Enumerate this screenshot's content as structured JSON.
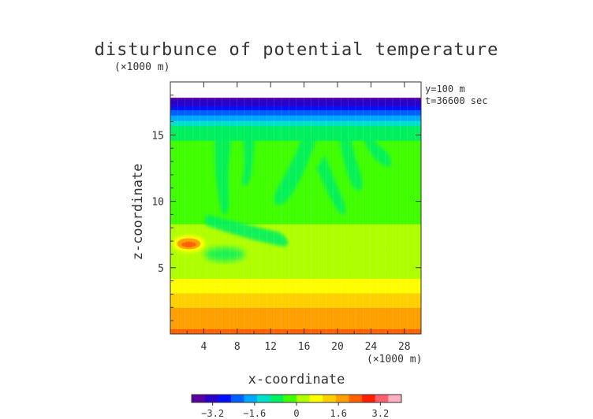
{
  "chart_data": {
    "type": "heatmap",
    "title": "disturbunce of potential temperature",
    "xlabel": "x-coordinate",
    "ylabel": "z-coordinate",
    "xunit": "(×1000 m)",
    "yunit": "(×1000 m)",
    "annotations": [
      "y=100 m",
      "t=36600 sec"
    ],
    "xlim": [
      0,
      30
    ],
    "ylim": [
      0,
      19
    ],
    "xticks": [
      4,
      8,
      12,
      16,
      20,
      24,
      28
    ],
    "yticks": [
      5,
      10,
      15
    ],
    "data_top": 17.8,
    "colorbar": {
      "range": [
        -4.0,
        4.0
      ],
      "ticks": [
        -3.2,
        -1.6,
        0,
        1.6,
        3.2
      ],
      "tick_labels": [
        "−3.2",
        "−1.6",
        "0",
        "1.6",
        "3.2"
      ],
      "colors": [
        "#5a00a0",
        "#2a00c8",
        "#0010ff",
        "#0060ff",
        "#00a8ff",
        "#00e0c8",
        "#00f060",
        "#40ff00",
        "#b0ff00",
        "#ffff00",
        "#ffd000",
        "#ffa000",
        "#ff6000",
        "#ff2000",
        "#ff6070",
        "#ffb0c0"
      ]
    },
    "features": {
      "surface_value": 2.1,
      "upper_value": -0.3,
      "top_layer_value": -3.4,
      "warm_spot": {
        "x": 2.2,
        "z": 6.8,
        "value": 2.4
      }
    }
  }
}
